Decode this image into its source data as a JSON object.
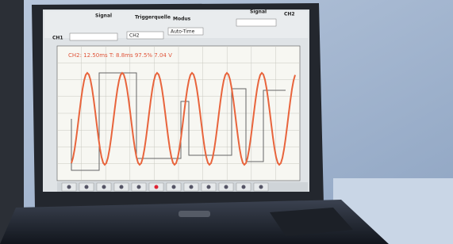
{
  "controls": {
    "signal_label": "Signal",
    "trigger_label": "Triggerquelle",
    "mode_label": "Modus",
    "signal2_label": "Signal",
    "channel_right": "CH2",
    "channel_left": "CH1",
    "trigger_value": "CH2",
    "mode_value": "Auto-Time"
  },
  "readout": "CH2: 12.50ms  T: 8.8ms  97.5%  7.04 V"
}
